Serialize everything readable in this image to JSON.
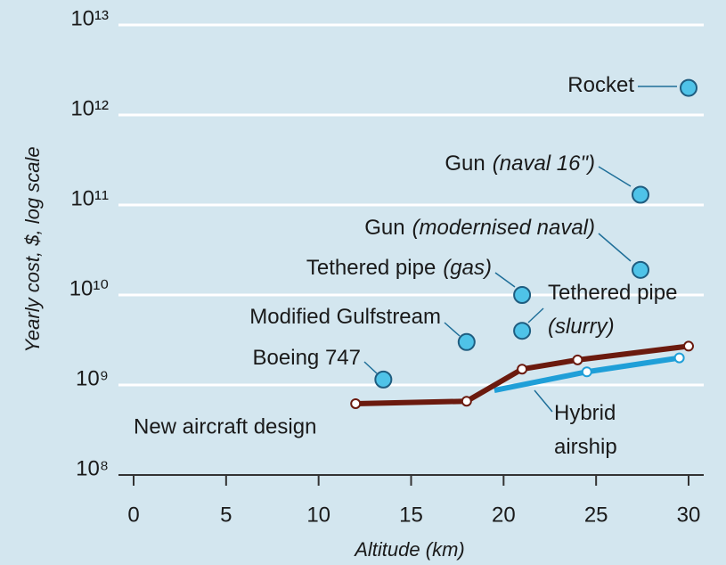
{
  "chart_data": {
    "type": "scatter",
    "y_label": "Yearly cost, $, log scale",
    "x_label": "Altitude (km)",
    "log_y": true,
    "grid": true,
    "xlim": [
      0,
      30
    ],
    "xticks": [
      0,
      5,
      10,
      15,
      20,
      25,
      30
    ],
    "ylim": [
      100000000,
      10000000000000
    ],
    "yticks": [
      {
        "value": 100000000,
        "label": "10⁸"
      },
      {
        "value": 1000000000,
        "label": "10⁹"
      },
      {
        "value": 10000000000,
        "label": "10¹⁰"
      },
      {
        "value": 100000000000,
        "label": "10¹¹"
      },
      {
        "value": 1000000000000,
        "label": "10¹²"
      },
      {
        "value": 10000000000000,
        "label": "10¹³"
      }
    ],
    "point_color": "#4fc3e8",
    "points": [
      {
        "label": "Rocket",
        "x": 30,
        "y": 2000000000000
      },
      {
        "label": "Gun",
        "qualifier": "(naval 16\")",
        "x": 27.4,
        "y": 130000000000
      },
      {
        "label": "Gun",
        "qualifier": "(modernised naval)",
        "x": 27.4,
        "y": 19000000000
      },
      {
        "label": "Tethered pipe",
        "qualifier": "(gas)",
        "x": 21,
        "y": 10000000000
      },
      {
        "label": "Tethered pipe",
        "qualifier": "(slurry)",
        "x": 21,
        "y": 4000000000
      },
      {
        "label": "Modified Gulfstream",
        "x": 18,
        "y": 3000000000
      },
      {
        "label": "Boeing 747",
        "x": 13.5,
        "y": 1150000000
      }
    ],
    "series": [
      {
        "name": "Hybrid airship",
        "color": "#1f9fd8",
        "x": [
          19.5,
          24.5,
          29.5
        ],
        "values": [
          870000000,
          1400000000,
          2000000000
        ]
      },
      {
        "name": "New aircraft design",
        "color": "#6b1a0e",
        "x": [
          12,
          18,
          21,
          24,
          30
        ],
        "values": [
          620000000,
          660000000,
          1500000000,
          1900000000,
          2700000000
        ]
      }
    ]
  }
}
